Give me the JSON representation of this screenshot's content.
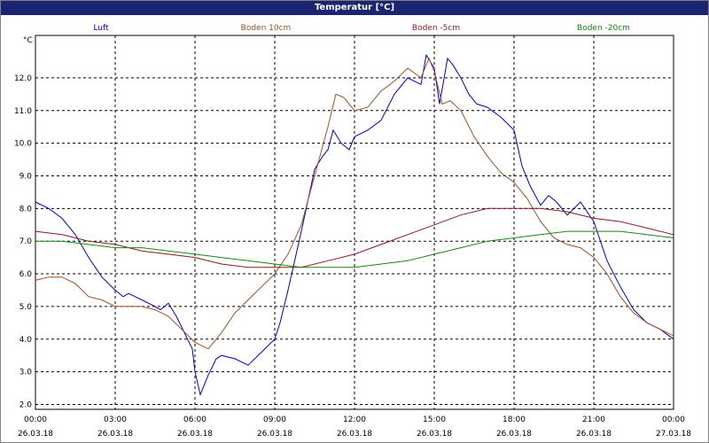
{
  "window": {
    "title": "Temperatur [°C]"
  },
  "chart_data": {
    "type": "line",
    "title": "Temperatur [°C]",
    "ylabel": "°C",
    "xlabel": "",
    "ylim": [
      1.85,
      13.3
    ],
    "xlim": [
      0,
      24
    ],
    "grid": true,
    "legend_placement": "top",
    "y_ticks": [
      "2.0",
      "3.0",
      "4.0",
      "5.0",
      "6.0",
      "7.0",
      "8.0",
      "9.0",
      "10.0",
      "11.0",
      "12.0"
    ],
    "x_ticks": [
      {
        "time": "00:00",
        "date": "26.03.18"
      },
      {
        "time": "03:00",
        "date": "26.03.18"
      },
      {
        "time": "06:00",
        "date": "26.03.18"
      },
      {
        "time": "09:00",
        "date": "26.03.18"
      },
      {
        "time": "12:00",
        "date": "26.03.18"
      },
      {
        "time": "15:00",
        "date": "26.03.18"
      },
      {
        "time": "18:00",
        "date": "26.03.18"
      },
      {
        "time": "21:00",
        "date": "26.03.18"
      },
      {
        "time": "00:00",
        "date": "27.03.18"
      }
    ],
    "series": [
      {
        "name": "Luft",
        "color": "#0000cc",
        "x": [
          0,
          0.5,
          1,
          1.5,
          2,
          2.5,
          3,
          3.3,
          3.5,
          4,
          4.5,
          4.7,
          5,
          5.3,
          5.6,
          5.9,
          6,
          6.2,
          6.5,
          6.8,
          7,
          7.5,
          8,
          8.5,
          9,
          9.2,
          9.5,
          10,
          10.5,
          10.8,
          11,
          11.2,
          11.5,
          11.8,
          12,
          12.5,
          13,
          13.5,
          14,
          14.5,
          14.7,
          15,
          15.2,
          15.5,
          15.7,
          16,
          16.3,
          16.6,
          17,
          17.5,
          18,
          18.3,
          18.6,
          19,
          19.3,
          19.6,
          20,
          20.5,
          21,
          21.5,
          22,
          22.5,
          23,
          23.5,
          24
        ],
        "y": [
          8.2,
          8.0,
          7.7,
          7.2,
          6.5,
          5.9,
          5.5,
          5.3,
          5.4,
          5.2,
          5.0,
          4.9,
          5.1,
          4.7,
          4.2,
          3.7,
          3.0,
          2.3,
          2.9,
          3.4,
          3.5,
          3.4,
          3.2,
          3.6,
          4.0,
          4.5,
          5.5,
          7.3,
          9.2,
          9.6,
          9.8,
          10.4,
          10.0,
          9.8,
          10.2,
          10.4,
          10.7,
          11.5,
          12.0,
          11.8,
          12.7,
          12.3,
          11.2,
          12.6,
          12.4,
          12.0,
          11.5,
          11.2,
          11.1,
          10.8,
          10.4,
          9.3,
          8.7,
          8.1,
          8.4,
          8.2,
          7.8,
          8.2,
          7.6,
          6.4,
          5.6,
          4.9,
          4.5,
          4.3,
          4.0
        ]
      },
      {
        "name": "Boden 10cm",
        "color": "#a0501e",
        "x": [
          0,
          0.5,
          1,
          1.5,
          2,
          2.5,
          3,
          3.5,
          4,
          4.5,
          5,
          5.5,
          6,
          6.5,
          7,
          7.5,
          8,
          8.5,
          9,
          9.5,
          10,
          10.5,
          11,
          11.3,
          11.6,
          12,
          12.5,
          13,
          13.5,
          14,
          14.5,
          14.8,
          15,
          15.3,
          15.6,
          16,
          16.5,
          17,
          17.5,
          18,
          18.5,
          19,
          19.5,
          20,
          20.5,
          21,
          21.5,
          22,
          22.5,
          23,
          23.5,
          24
        ],
        "y": [
          5.8,
          5.9,
          5.9,
          5.7,
          5.3,
          5.2,
          5.0,
          5.0,
          5.0,
          4.9,
          4.7,
          4.3,
          3.9,
          3.7,
          4.2,
          4.8,
          5.2,
          5.6,
          6.0,
          6.6,
          7.5,
          9.0,
          10.5,
          11.5,
          11.4,
          11.0,
          11.1,
          11.6,
          11.9,
          12.3,
          12.0,
          12.6,
          12.2,
          11.2,
          11.3,
          11.0,
          10.2,
          9.6,
          9.1,
          8.8,
          8.3,
          7.6,
          7.1,
          6.9,
          6.8,
          6.5,
          6.0,
          5.3,
          4.8,
          4.5,
          4.3,
          4.1
        ]
      },
      {
        "name": "Boden -5cm",
        "color": "#8b1a1a",
        "x": [
          0,
          1,
          2,
          3,
          4,
          5,
          6,
          7,
          8,
          9,
          10,
          11,
          12,
          13,
          14,
          15,
          16,
          17,
          18,
          19,
          20,
          21,
          22,
          23,
          24
        ],
        "y": [
          7.3,
          7.2,
          7.0,
          6.9,
          6.7,
          6.6,
          6.5,
          6.3,
          6.2,
          6.2,
          6.2,
          6.4,
          6.6,
          6.9,
          7.2,
          7.5,
          7.8,
          8.0,
          8.0,
          8.0,
          7.9,
          7.7,
          7.6,
          7.4,
          7.2
        ]
      },
      {
        "name": "Boden -20cm",
        "color": "#118811",
        "x": [
          0,
          1,
          2,
          3,
          4,
          5,
          6,
          7,
          8,
          9,
          10,
          11,
          12,
          13,
          14,
          15,
          16,
          17,
          18,
          19,
          20,
          21,
          22,
          23,
          24
        ],
        "y": [
          7.0,
          7.0,
          6.9,
          6.8,
          6.8,
          6.7,
          6.6,
          6.5,
          6.4,
          6.3,
          6.2,
          6.2,
          6.2,
          6.3,
          6.4,
          6.6,
          6.8,
          7.0,
          7.1,
          7.2,
          7.3,
          7.3,
          7.3,
          7.2,
          7.1
        ]
      }
    ]
  }
}
